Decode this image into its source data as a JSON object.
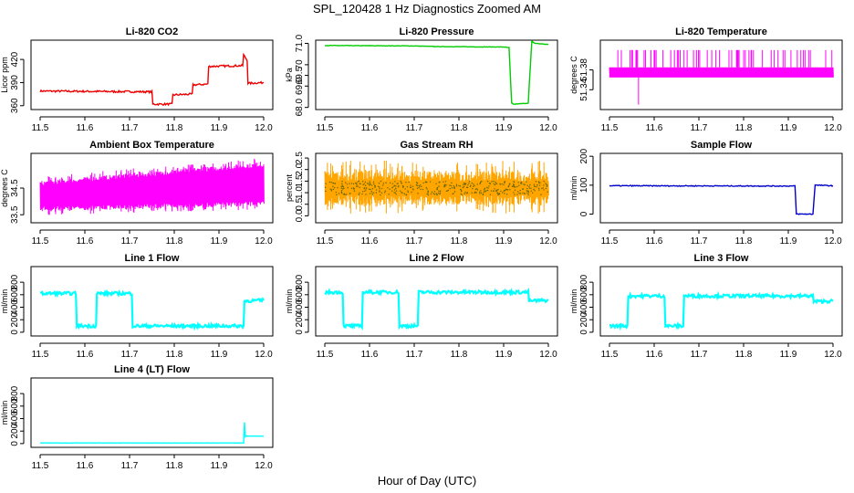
{
  "figure": {
    "title": "SPL_120428 1 Hz Diagnostics Zoomed AM",
    "xlabel": "Hour of Day (UTC)"
  },
  "chart_data": [
    {
      "type": "line",
      "title": "Li-820 CO2",
      "ylabel": "Licor ppm",
      "color": "#ee0000",
      "xlim": [
        11.5,
        12.0
      ],
      "ylim": [
        355,
        445
      ],
      "xticks": [
        "11.5",
        "11.6",
        "11.7",
        "11.8",
        "11.9",
        "12.0"
      ],
      "yticks": [
        [
          "360",
          360
        ],
        [
          "390",
          390
        ],
        [
          "420",
          420
        ]
      ],
      "noise": 1.2,
      "series": [
        {
          "x": [
            11.5,
            11.75,
            11.752,
            11.795,
            11.797,
            11.84,
            11.842,
            11.875,
            11.877,
            11.953,
            11.955,
            11.963,
            11.965,
            12.0
          ],
          "y": [
            379,
            378,
            362,
            362,
            374,
            375,
            387,
            388,
            411,
            412,
            426,
            419,
            389,
            390
          ]
        }
      ]
    },
    {
      "type": "line",
      "title": "Li-820 Pressure",
      "ylabel": "kPa",
      "color": "#00cc00",
      "xlim": [
        11.5,
        12.0
      ],
      "ylim": [
        67.9,
        71.15
      ],
      "xticks": [
        "11.5",
        "11.6",
        "11.7",
        "11.8",
        "11.9",
        "12.0"
      ],
      "yticks": [
        [
          "68.0",
          68.0
        ],
        [
          "69.0",
          69.0
        ],
        [
          "69.5",
          69.5
        ],
        [
          "70",
          70.0
        ],
        [
          "71.0",
          71.0
        ]
      ],
      "noise": 0.01,
      "series": [
        {
          "x": [
            11.5,
            11.7,
            11.75,
            11.9,
            11.912,
            11.918,
            11.922,
            11.955,
            11.963,
            11.97,
            12.0
          ],
          "y": [
            70.9,
            70.88,
            70.85,
            70.83,
            70.8,
            68.2,
            68.15,
            68.2,
            71.1,
            71.0,
            70.95
          ]
        }
      ]
    },
    {
      "type": "band",
      "title": "Li-820 Temperature",
      "ylabel": "degrees C",
      "color": "#ff00ff",
      "xlim": [
        11.5,
        12.0
      ],
      "ylim": [
        51.3,
        51.44
      ],
      "xticks": [
        "11.5",
        "11.6",
        "11.7",
        "11.8",
        "11.9",
        "12.0"
      ],
      "yticks": [
        [
          "51.34",
          51.34
        ],
        [
          "51.38",
          51.38
        ]
      ],
      "band": {
        "low": 51.365,
        "high": 51.385
      },
      "spikes": 60,
      "spike_high": 51.42,
      "dip": {
        "x": 11.565,
        "y": 51.31
      }
    },
    {
      "type": "band",
      "title": "Ambient Box Temperature",
      "ylabel": "degrees C",
      "color": "#ff00ff",
      "xlim": [
        11.5,
        12.0
      ],
      "ylim": [
        33.2,
        35.8
      ],
      "xticks": [
        "11.5",
        "11.6",
        "11.7",
        "11.8",
        "11.9",
        "12.0"
      ],
      "yticks": [
        [
          "33.5",
          33.5
        ],
        [
          "34.5",
          34.5
        ]
      ],
      "band": {
        "low_start": 33.8,
        "low_end": 34.0,
        "high_start": 34.6,
        "high_end": 35.3
      },
      "spikes": 80,
      "spread": 0.35
    },
    {
      "type": "band",
      "title": "Gas Stream RH",
      "ylabel": "percent",
      "color": "#ffa500",
      "dots": "#666600",
      "xlim": [
        11.5,
        12.0
      ],
      "ylim": [
        -0.3,
        2.7
      ],
      "xticks": [
        "11.5",
        "11.6",
        "11.7",
        "11.8",
        "11.9",
        "12.0"
      ],
      "yticks": [
        [
          "0.0",
          0.0
        ],
        [
          "0.5",
          0.5
        ],
        [
          "1.0",
          1.0
        ],
        [
          "1.5",
          1.5
        ],
        [
          "2.0",
          2.0
        ],
        [
          "2.5",
          2.5
        ]
      ],
      "band": {
        "low": 0.9,
        "high": 1.5
      },
      "spikes": 70,
      "spread": 0.9
    },
    {
      "type": "line",
      "title": "Sample Flow",
      "ylabel": "ml/min",
      "color": "#0000cc",
      "xlim": [
        11.5,
        12.0
      ],
      "ylim": [
        -30,
        210
      ],
      "xticks": [
        "11.5",
        "11.6",
        "11.7",
        "11.8",
        "11.9",
        "12.0"
      ],
      "yticks": [
        [
          "0",
          0
        ],
        [
          "100",
          100
        ],
        [
          "200",
          200
        ]
      ],
      "noise": 1.5,
      "series": [
        {
          "x": [
            11.5,
            11.915,
            11.918,
            11.955,
            11.96,
            11.963,
            12.0
          ],
          "y": [
            98,
            97,
            0,
            0,
            102,
            100,
            98
          ]
        }
      ]
    },
    {
      "type": "line",
      "title": "Line 1 Flow",
      "ylabel": "ml/min",
      "color": "#00ffff",
      "xlim": [
        11.5,
        12.0
      ],
      "ylim": [
        -60,
        1050
      ],
      "xticks": [
        "11.5",
        "11.6",
        "11.7",
        "11.8",
        "11.9",
        "12.0"
      ],
      "yticks": [
        [
          "0",
          0
        ],
        [
          "200",
          200
        ],
        [
          "400",
          400
        ],
        [
          "600",
          600
        ],
        [
          "800",
          800
        ]
      ],
      "noise": 25,
      "series": [
        {
          "x": [
            11.5,
            11.58,
            11.582,
            11.625,
            11.627,
            11.705,
            11.707,
            11.955,
            11.957,
            12.0
          ],
          "y": [
            620,
            620,
            100,
            100,
            620,
            620,
            100,
            100,
            500,
            510
          ]
        }
      ]
    },
    {
      "type": "line",
      "title": "Line 2 Flow",
      "ylabel": "ml/min",
      "color": "#00ffff",
      "xlim": [
        11.5,
        12.0
      ],
      "ylim": [
        -60,
        1050
      ],
      "xticks": [
        "11.5",
        "11.6",
        "11.7",
        "11.8",
        "11.9",
        "12.0"
      ],
      "yticks": [
        [
          "0",
          0
        ],
        [
          "200",
          200
        ],
        [
          "400",
          400
        ],
        [
          "600",
          600
        ],
        [
          "800",
          800
        ]
      ],
      "noise": 25,
      "series": [
        {
          "x": [
            11.5,
            11.54,
            11.542,
            11.583,
            11.585,
            11.665,
            11.667,
            11.708,
            11.71,
            11.955,
            11.957,
            12.0
          ],
          "y": [
            640,
            640,
            100,
            100,
            640,
            640,
            100,
            100,
            640,
            640,
            500,
            510
          ]
        }
      ]
    },
    {
      "type": "line",
      "title": "Line 3 Flow",
      "ylabel": "ml/min",
      "color": "#00ffff",
      "xlim": [
        11.5,
        12.0
      ],
      "ylim": [
        -60,
        1050
      ],
      "xticks": [
        "11.5",
        "11.6",
        "11.7",
        "11.8",
        "11.9",
        "12.0"
      ],
      "yticks": [
        [
          "0",
          0
        ],
        [
          "200",
          200
        ],
        [
          "400",
          400
        ],
        [
          "600",
          600
        ],
        [
          "800",
          800
        ]
      ],
      "noise": 25,
      "series": [
        {
          "x": [
            11.5,
            11.54,
            11.542,
            11.623,
            11.625,
            11.665,
            11.667,
            11.955,
            11.957,
            12.0
          ],
          "y": [
            100,
            100,
            580,
            580,
            100,
            100,
            580,
            580,
            490,
            500
          ]
        }
      ]
    },
    {
      "type": "line",
      "title": "Line 4 (LT) Flow",
      "ylabel": "ml/min",
      "color": "#00ffff",
      "xlim": [
        11.5,
        12.0
      ],
      "ylim": [
        -60,
        1050
      ],
      "xticks": [
        "11.5",
        "11.6",
        "11.7",
        "11.8",
        "11.9",
        "12.0"
      ],
      "yticks": [
        [
          "0",
          0
        ],
        [
          "200",
          200
        ],
        [
          "400",
          400
        ],
        [
          "600",
          600
        ],
        [
          "800",
          800
        ]
      ],
      "noise": 2,
      "series": [
        {
          "x": [
            11.5,
            11.955,
            11.957,
            11.959,
            11.961,
            12.0
          ],
          "y": [
            10,
            10,
            340,
            110,
            120,
            120
          ]
        }
      ]
    }
  ]
}
